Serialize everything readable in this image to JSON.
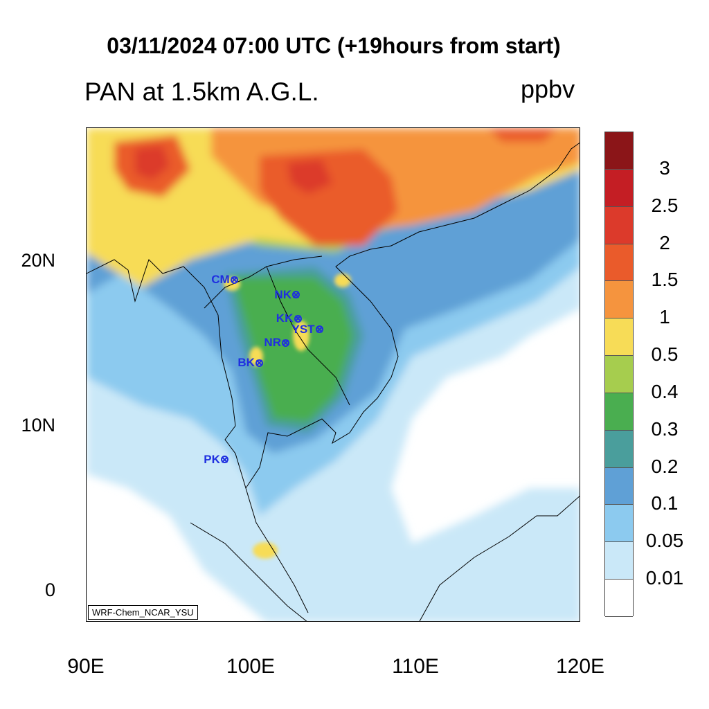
{
  "title": "03/11/2024 07:00 UTC (+19hours from start)",
  "variable_title": "PAN at 1.5km A.G.L.",
  "units": "ppbv",
  "credit": "WRF-Chem_NCAR_YSU",
  "lat_labels": [
    "20N",
    "10N",
    "0"
  ],
  "lon_labels": [
    "90E",
    "100E",
    "110E",
    "120E"
  ],
  "colorbar": {
    "levels": [
      "3",
      "2.5",
      "2",
      "1.5",
      "1",
      "0.5",
      "0.4",
      "0.3",
      "0.2",
      "0.1",
      "0.05",
      "0.01"
    ],
    "colors": [
      "#8b1518",
      "#c41e24",
      "#dc3a2b",
      "#ea5b2b",
      "#f5943e",
      "#f7dc57",
      "#a6cd4e",
      "#4aae50",
      "#4a9e9c",
      "#5fa0d6",
      "#8ccaef",
      "#cae8f8",
      "#ffffff"
    ]
  },
  "sites": [
    {
      "code": "CM",
      "lon": 98.98,
      "lat": 18.79
    },
    {
      "code": "NK",
      "lon": 102.73,
      "lat": 17.88
    },
    {
      "code": "KK",
      "lon": 102.83,
      "lat": 16.44
    },
    {
      "code": "YST",
      "lon": 104.14,
      "lat": 15.79
    },
    {
      "code": "NR",
      "lon": 102.1,
      "lat": 14.97
    },
    {
      "code": "BK",
      "lon": 100.5,
      "lat": 13.75
    },
    {
      "code": "PK",
      "lon": 98.4,
      "lat": 7.88
    }
  ],
  "map_extent": {
    "lon": [
      90,
      120
    ],
    "lat": [
      -2,
      28
    ]
  }
}
